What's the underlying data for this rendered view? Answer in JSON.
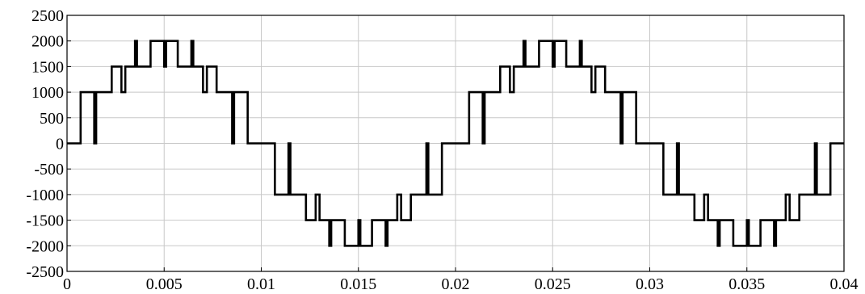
{
  "chart_data": {
    "type": "line",
    "x": [
      0,
      0.0007,
      0.0007,
      0.0014,
      0.0014,
      0.0015,
      0.0015,
      0.0023,
      0.0023,
      0.0028,
      0.0028,
      0.003,
      0.003,
      0.0035,
      0.0035,
      0.0036,
      0.0036,
      0.0043,
      0.0043,
      0.005,
      0.005,
      0.0051,
      0.0051,
      0.0057,
      0.0057,
      0.0064,
      0.0064,
      0.0065,
      0.0065,
      0.007,
      0.007,
      0.0072,
      0.0072,
      0.0077,
      0.0077,
      0.0085,
      0.0085,
      0.0086,
      0.0086,
      0.0093,
      0.0093,
      0.01,
      0.0107,
      0.0107,
      0.0114,
      0.0114,
      0.0115,
      0.0115,
      0.0123,
      0.0123,
      0.0128,
      0.0128,
      0.013,
      0.013,
      0.0135,
      0.0135,
      0.0136,
      0.0136,
      0.0143,
      0.0143,
      0.015,
      0.015,
      0.0151,
      0.0151,
      0.0157,
      0.0157,
      0.0164,
      0.0164,
      0.0165,
      0.0165,
      0.017,
      0.017,
      0.0172,
      0.0172,
      0.0177,
      0.0177,
      0.0185,
      0.0185,
      0.0186,
      0.0186,
      0.0193,
      0.0193,
      0.02,
      0.0207,
      0.0207,
      0.0214,
      0.0214,
      0.0215,
      0.0215,
      0.0223,
      0.0223,
      0.0228,
      0.0228,
      0.023,
      0.023,
      0.0235,
      0.0235,
      0.0236,
      0.0236,
      0.0243,
      0.0243,
      0.025,
      0.025,
      0.0251,
      0.0251,
      0.0257,
      0.0257,
      0.0264,
      0.0264,
      0.0265,
      0.0265,
      0.027,
      0.027,
      0.0272,
      0.0272,
      0.0277,
      0.0277,
      0.0285,
      0.0285,
      0.0286,
      0.0286,
      0.0293,
      0.0293,
      0.03,
      0.0307,
      0.0307,
      0.0314,
      0.0314,
      0.0315,
      0.0315,
      0.0323,
      0.0323,
      0.0328,
      0.0328,
      0.033,
      0.033,
      0.0335,
      0.0335,
      0.0336,
      0.0336,
      0.0343,
      0.0343,
      0.035,
      0.035,
      0.0351,
      0.0351,
      0.0357,
      0.0357,
      0.0364,
      0.0364,
      0.0365,
      0.0365,
      0.037,
      0.037,
      0.0372,
      0.0372,
      0.0377,
      0.0377,
      0.0385,
      0.0385,
      0.0386,
      0.0386,
      0.0393,
      0.0393,
      0.04
    ],
    "values": [
      0,
      0,
      1000,
      1000,
      0,
      0,
      1000,
      1000,
      1500,
      1500,
      1000,
      1000,
      1500,
      1500,
      2000,
      2000,
      1500,
      1500,
      2000,
      2000,
      1500,
      1500,
      2000,
      2000,
      1500,
      1500,
      2000,
      2000,
      1500,
      1500,
      1000,
      1000,
      1500,
      1500,
      1000,
      1000,
      0,
      0,
      1000,
      1000,
      0,
      0,
      0,
      -1000,
      -1000,
      0,
      0,
      -1000,
      -1000,
      -1500,
      -1500,
      -1000,
      -1000,
      -1500,
      -1500,
      -2000,
      -2000,
      -1500,
      -1500,
      -2000,
      -2000,
      -1500,
      -1500,
      -2000,
      -2000,
      -1500,
      -1500,
      -2000,
      -2000,
      -1500,
      -1500,
      -1000,
      -1000,
      -1500,
      -1500,
      -1000,
      -1000,
      0,
      0,
      -1000,
      -1000,
      0,
      0,
      0,
      1000,
      1000,
      0,
      0,
      1000,
      1000,
      1500,
      1500,
      1000,
      1000,
      1500,
      1500,
      2000,
      2000,
      1500,
      1500,
      2000,
      2000,
      1500,
      1500,
      2000,
      2000,
      1500,
      1500,
      2000,
      2000,
      1500,
      1500,
      1000,
      1000,
      1500,
      1500,
      1000,
      1000,
      0,
      0,
      1000,
      1000,
      0,
      0,
      0,
      -1000,
      -1000,
      0,
      0,
      -1000,
      -1000,
      -1500,
      -1500,
      -1000,
      -1000,
      -1500,
      -1500,
      -2000,
      -2000,
      -1500,
      -1500,
      -2000,
      -2000,
      -1500,
      -1500,
      -2000,
      -2000,
      -1500,
      -1500,
      -2000,
      -2000,
      -1500,
      -1500,
      -1000,
      -1000,
      -1500,
      -1500,
      -1000,
      -1000,
      0,
      0,
      -1000,
      -1000,
      0,
      0
    ],
    "color": "#000000",
    "xlim": [
      0,
      0.04
    ],
    "xticks": [
      0,
      0.005,
      0.01,
      0.015,
      0.02,
      0.025,
      0.03,
      0.035,
      0.04
    ],
    "ylim": [
      -2500,
      2500
    ],
    "yticks": [
      -2500,
      -2000,
      -1500,
      -1000,
      -500,
      0,
      500,
      1000,
      1500,
      2000,
      2500
    ],
    "grid": true
  }
}
